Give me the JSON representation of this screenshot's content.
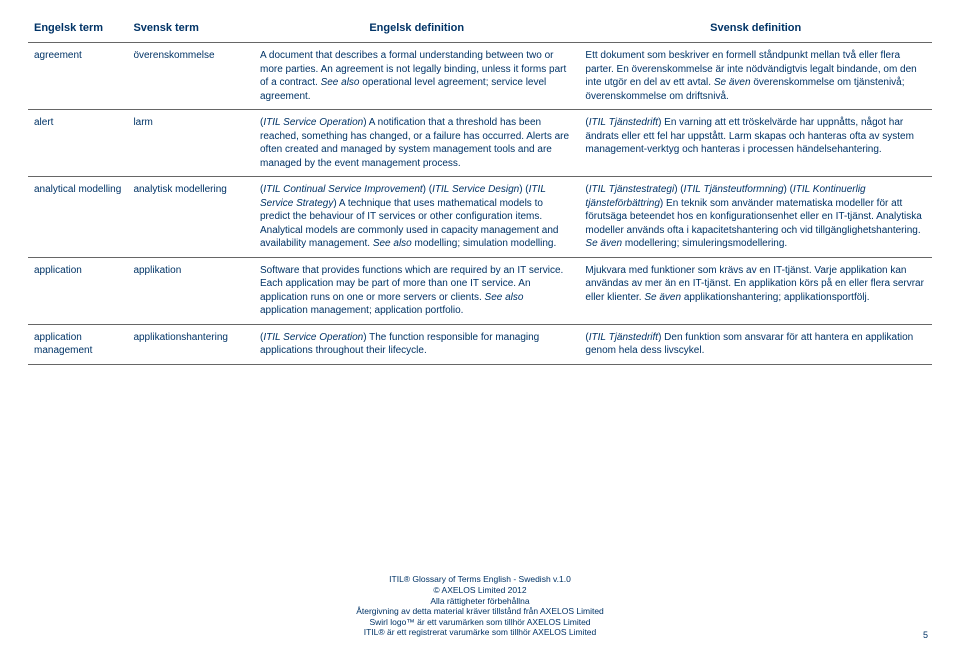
{
  "headers": {
    "en_term": "Engelsk term",
    "sv_term": "Svensk term",
    "en_def": "Engelsk definition",
    "sv_def": "Svensk definition"
  },
  "rows": [
    {
      "en_term": "agreement",
      "sv_term": "överenskommelse",
      "en_def": "A document that describes a formal understanding between two or more parties. An agreement is not legally binding, unless it forms part of a contract. <i>See also</i> operational level agreement; service level agreement.",
      "sv_def": "Ett dokument som beskriver en formell ståndpunkt mellan två eller flera parter. En överenskommelse är inte nödvändigtvis legalt bindande, om den inte utgör en del av ett avtal. <i>Se även</i> överenskommelse om tjänstenivå; överenskommelse om driftsnivå."
    },
    {
      "en_term": "alert",
      "sv_term": "larm",
      "en_def": "(<i>ITIL Service Operation</i>) A notification that a threshold has been reached, something has changed, or a failure has occurred. Alerts are often created and managed by system management tools and are managed by the event management process.",
      "sv_def": "(<i>ITIL Tjänstedrift</i>) En varning att ett tröskelvärde har uppnåtts, något har ändrats eller ett fel har uppstått. Larm skapas och hanteras ofta av system management-verktyg och hanteras i processen händelsehantering."
    },
    {
      "en_term": "analytical modelling",
      "sv_term": "analytisk modellering",
      "en_def": "(<i>ITIL Continual Service Improvement</i>) (<i>ITIL Service Design</i>) (<i>ITIL Service Strategy</i>) A technique that uses mathematical models to predict the behaviour of IT services or other configuration items. Analytical models are commonly used in capacity management and availability management. <i>See also</i> modelling; simulation modelling.",
      "sv_def": "(<i>ITIL Tjänstestrategi</i>) (<i>ITIL Tjänsteutformning</i>) (<i>ITIL Kontinuerlig tjänsteförbättring</i>) En teknik som använder matematiska modeller för att förutsäga beteendet hos en konfigurationsenhet eller en IT-tjänst. Analytiska modeller används ofta i kapacitetshantering och vid tillgänglighetshantering. <i>Se även</i> modellering; simuleringsmodellering."
    },
    {
      "en_term": "application",
      "sv_term": "applikation",
      "en_def": "Software that provides functions which are required by an IT service. Each application may be part of more than one IT service. An application runs on one or more servers or clients. <i>See also</i> application management; application portfolio.",
      "sv_def": "Mjukvara med funktioner som krävs av en IT-tjänst. Varje applikation kan användas av mer än en IT-tjänst. En applikation körs på en eller flera servrar eller klienter. <i>Se även</i> applikationshantering; applikationsportfölj."
    },
    {
      "en_term": "application management",
      "sv_term": "applikationshantering",
      "en_def": "(<i>ITIL Service Operation</i>) The function responsible for managing applications throughout their lifecycle.",
      "sv_def": "(<i>ITIL Tjänstedrift</i>) Den funktion som ansvarar för att hantera en applikation genom hela dess livscykel."
    }
  ],
  "footer": {
    "l1": "ITIL® Glossary of Terms English - Swedish v.1.0",
    "l2": "© AXELOS Limited 2012",
    "l3": "Alla rättigheter förbehållna",
    "l4": "Återgivning av detta material kräver tillstånd från AXELOS Limited",
    "l5": "Swirl logo™ är ett varumärken som tillhör AXELOS Limited",
    "l6": "ITIL® är ett registrerat varumärke som tillhör AXELOS Limited"
  },
  "page_number": "5"
}
